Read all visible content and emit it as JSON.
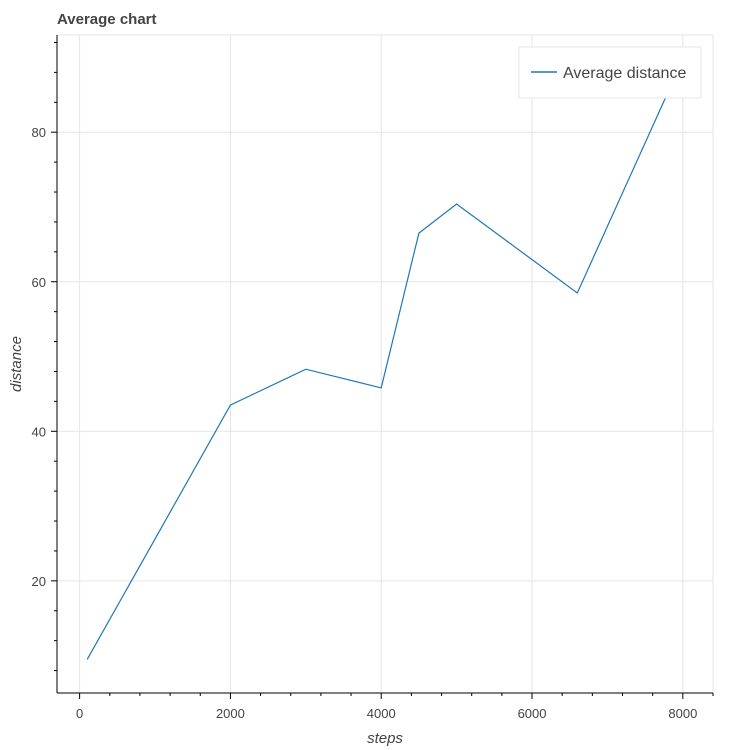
{
  "chart_data": {
    "type": "line",
    "title": "Average chart",
    "xlabel": "steps",
    "ylabel": "distance",
    "xlim": [
      -300,
      8400
    ],
    "ylim": [
      5,
      93
    ],
    "x_ticks": [
      0,
      2000,
      4000,
      6000,
      8000
    ],
    "y_ticks": [
      20,
      40,
      60,
      80
    ],
    "grid": true,
    "legend_position": "top-right",
    "series": [
      {
        "name": "Average distance",
        "color": "#1f77b4",
        "x": [
          100,
          2000,
          3000,
          4000,
          4500,
          5000,
          6600,
          7900
        ],
        "y": [
          9.5,
          43.5,
          48.3,
          45.8,
          66.5,
          70.4,
          58.5,
          87.5
        ]
      }
    ]
  }
}
